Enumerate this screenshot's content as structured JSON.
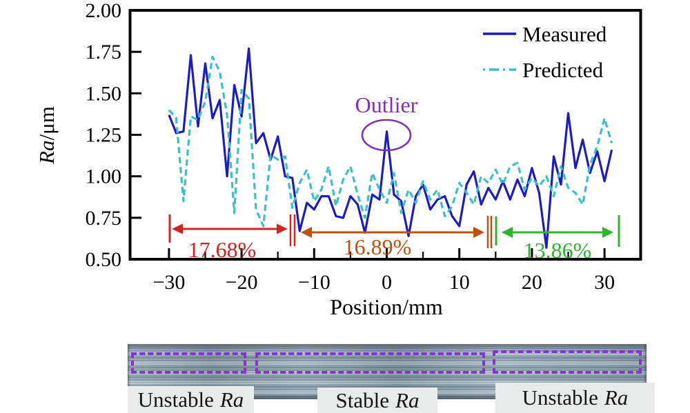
{
  "chart": {
    "legend": {
      "measured_label": "Measured",
      "predicted_label": "Predicted"
    },
    "y_label_italic": "Ra",
    "y_label_rest": "/μm",
    "x_label": "Position/mm",
    "colors": {
      "measured": "#1b1cc5",
      "predicted": "#3bbecd",
      "axis": "#000000",
      "outlier": "#7e2fc0",
      "segment_red": "#d2231f",
      "segment_orange": "#c0500e",
      "segment_green": "#2eb42e"
    }
  },
  "chart_data": {
    "type": "line",
    "title": "",
    "xlabel": "Position/mm",
    "ylabel": "Ra/μm",
    "xlim": [
      -35.4,
      35.1
    ],
    "ylim": [
      0.5,
      2.0
    ],
    "grid": false,
    "legend_position": "upper right",
    "x_ticks": [
      {
        "v": -30,
        "label": "−30"
      },
      {
        "v": -20,
        "label": "−20"
      },
      {
        "v": -10,
        "label": "−10"
      },
      {
        "v": 0,
        "label": "0"
      },
      {
        "v": 10,
        "label": "10"
      },
      {
        "v": 20,
        "label": "20"
      },
      {
        "v": 30,
        "label": "30"
      }
    ],
    "x_minor_ticks": [
      -25,
      -15,
      -5,
      5,
      15,
      25
    ],
    "y_ticks": [
      {
        "v": 2.0,
        "label": "2.00"
      },
      {
        "v": 1.75,
        "label": "1.75"
      },
      {
        "v": 1.5,
        "label": "1.50"
      },
      {
        "v": 1.25,
        "label": "1.25"
      },
      {
        "v": 1.0,
        "label": "1.00"
      },
      {
        "v": 0.75,
        "label": "0.75"
      },
      {
        "v": 0.5,
        "label": "0.50"
      }
    ],
    "x_start": -30,
    "x_step": 1,
    "series": [
      {
        "name": "Measured",
        "style": "solid",
        "color": "#1b1cc5",
        "values": [
          1.37,
          1.26,
          1.27,
          1.73,
          1.3,
          1.68,
          1.35,
          1.46,
          1.0,
          1.55,
          1.36,
          1.77,
          1.2,
          1.26,
          1.1,
          1.24,
          1.0,
          0.99,
          0.67,
          0.84,
          0.8,
          0.88,
          0.88,
          0.76,
          0.75,
          0.88,
          0.83,
          0.66,
          0.89,
          0.86,
          1.27,
          0.89,
          0.85,
          0.64,
          0.88,
          0.95,
          0.8,
          0.86,
          0.88,
          0.76,
          0.7,
          0.95,
          1.03,
          0.83,
          0.93,
          0.86,
          0.97,
          0.86,
          0.98,
          0.88,
          1.05,
          0.9,
          0.57,
          1.12,
          0.95,
          1.38,
          1.05,
          1.22,
          1.02,
          1.15,
          0.97,
          1.16
        ]
      },
      {
        "name": "Predicted",
        "style": "dashed",
        "color": "#3bbecd",
        "values": [
          1.4,
          1.35,
          0.85,
          1.36,
          1.34,
          1.45,
          1.72,
          1.63,
          1.37,
          0.78,
          1.52,
          1.47,
          0.8,
          0.7,
          1.13,
          1.1,
          1.12,
          0.81,
          0.96,
          1.04,
          0.85,
          0.92,
          1.06,
          0.82,
          0.98,
          1.06,
          0.89,
          0.75,
          1.02,
          0.92,
          0.84,
          1.02,
          0.78,
          0.92,
          0.84,
          0.97,
          0.86,
          0.92,
          0.76,
          0.82,
          0.96,
          0.9,
          0.83,
          1.0,
          0.96,
          1.04,
          0.95,
          1.06,
          1.08,
          0.92,
          0.99,
          0.94,
          1.0,
          0.88,
          1.06,
          0.93,
          0.9,
          0.83,
          1.07,
          1.18,
          1.35,
          1.2
        ]
      }
    ],
    "annotations": {
      "outlier": {
        "label": "Outlier",
        "x": 0,
        "y": 1.27,
        "color": "#7e2fc0"
      },
      "segments": [
        {
          "label": "17.68%",
          "color": "#d2231f",
          "x_start": -30,
          "x_end": -13.5
        },
        {
          "label": "16.89%",
          "color": "#c0500e",
          "x_start": -12.5,
          "x_end": 14
        },
        {
          "label": "13.86%",
          "color": "#2eb42e",
          "x_start": 15.5,
          "x_end": 32
        }
      ]
    }
  },
  "footer": {
    "labels": [
      {
        "prefix": "Unstable",
        "italic": "Ra"
      },
      {
        "prefix": "Stable",
        "italic": "Ra"
      },
      {
        "prefix": "Unstable",
        "italic": "Ra"
      }
    ]
  }
}
